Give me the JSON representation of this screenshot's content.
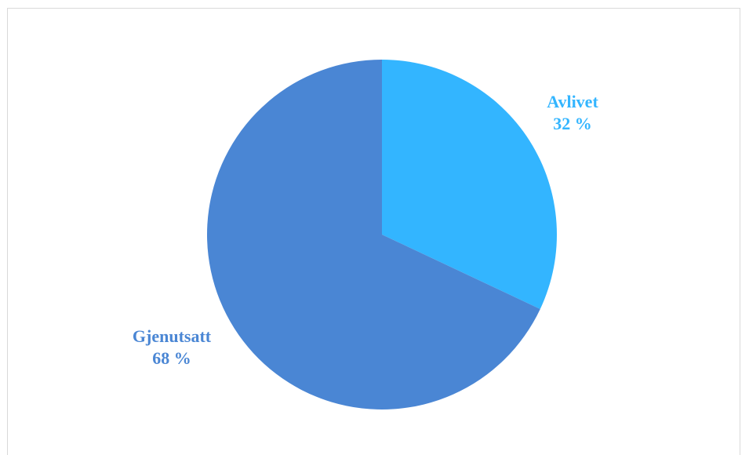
{
  "chart_data": {
    "type": "pie",
    "title": "",
    "slices": [
      {
        "label": "Avlivet",
        "value": 32,
        "value_label": "32 %",
        "color": "#33b5ff"
      },
      {
        "label": "Gjenutsatt",
        "value": 68,
        "value_label": "68 %",
        "color": "#4a86d4"
      }
    ],
    "start_angle_deg": 0,
    "direction": "clockwise",
    "labels_outside": true
  }
}
